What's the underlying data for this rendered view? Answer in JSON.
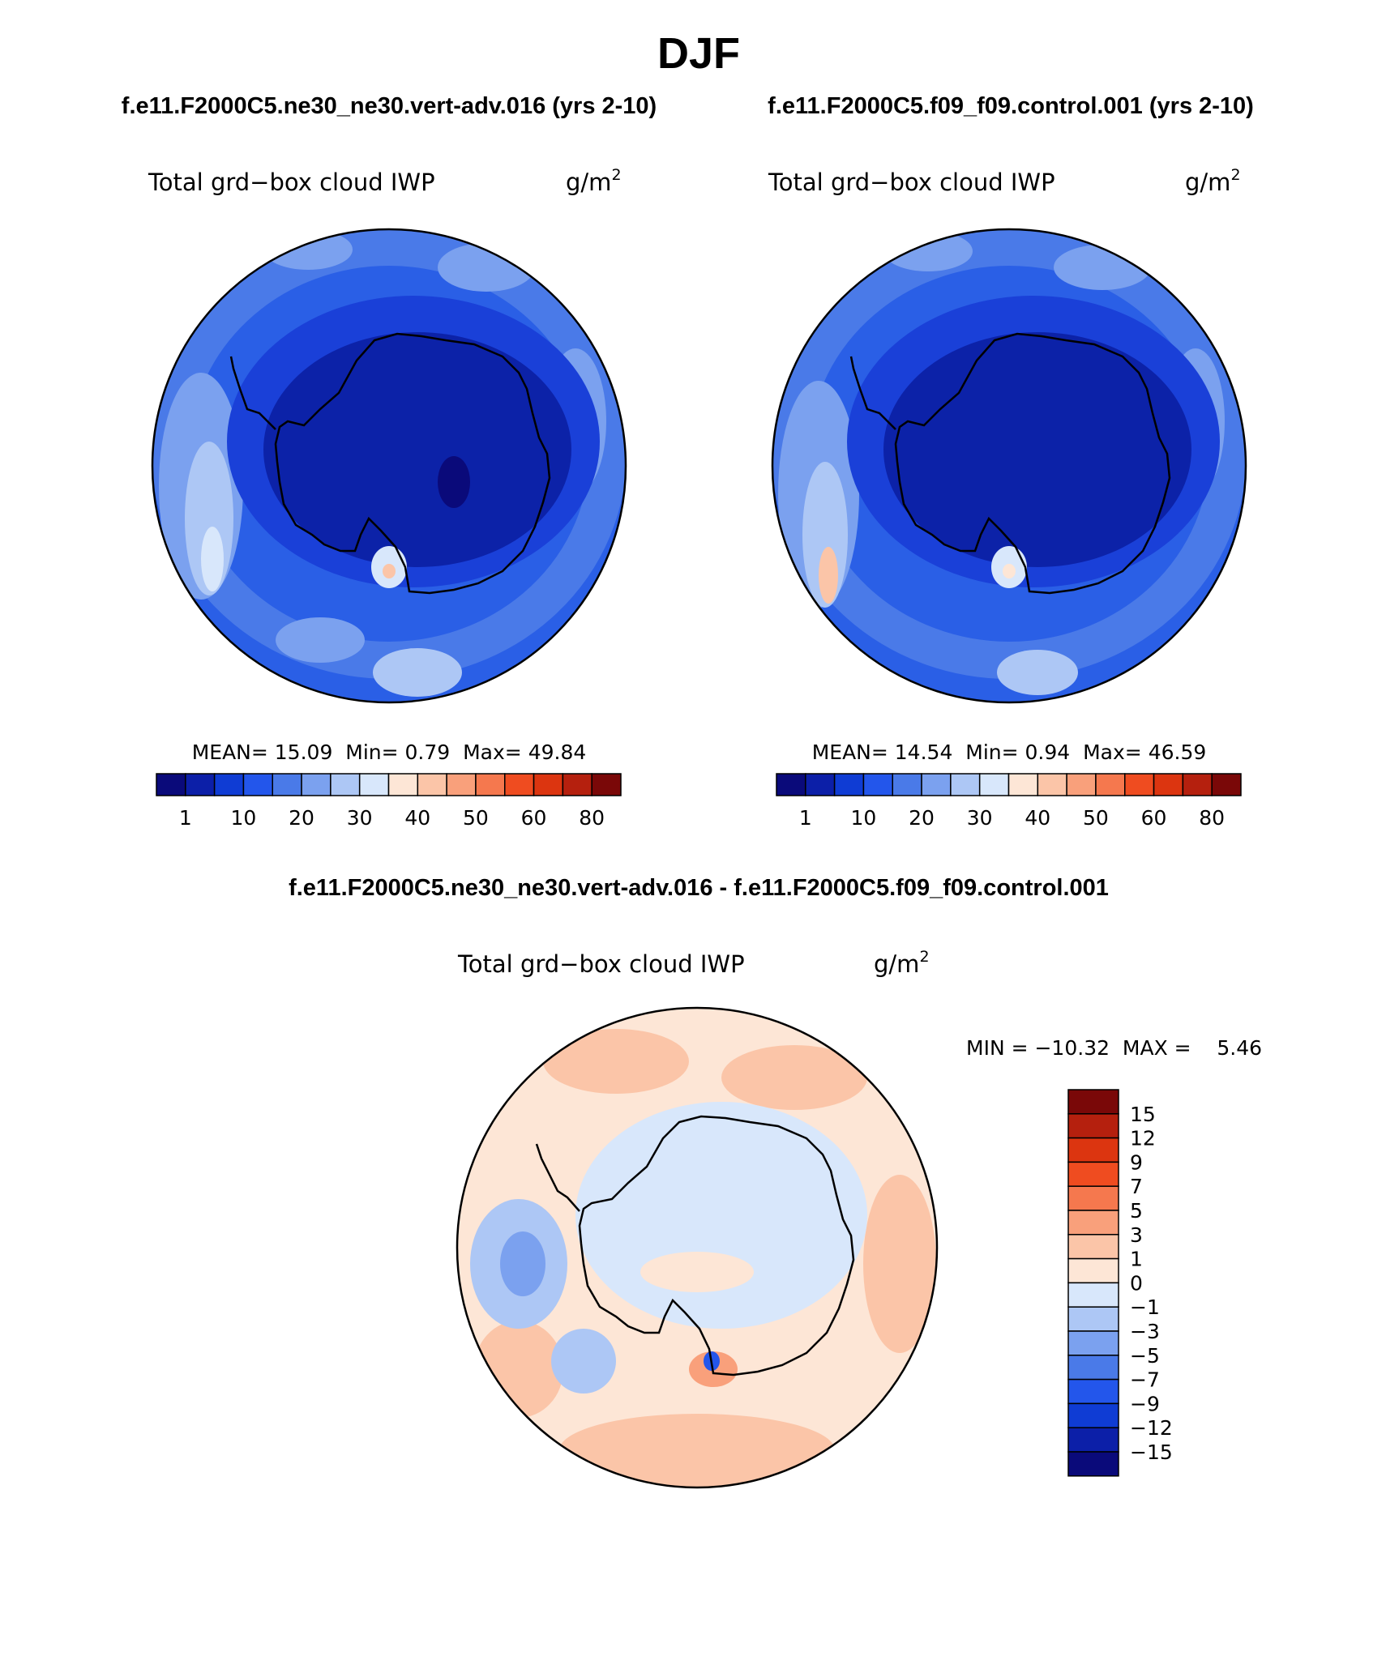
{
  "figure_title": "DJF",
  "chart_data": [
    {
      "type": "contour-map",
      "projection": "south-polar-stereographic",
      "case_title": "f.e11.F2000C5.ne30_ne30.vert-adv.016 (yrs 2-10)",
      "variable": "Total grd−box cloud IWP",
      "units": "g/m",
      "units_exp": "2",
      "stats": {
        "mean_label": "MEAN=",
        "mean": "15.09",
        "min_label": "Min=",
        "min": "0.79",
        "max_label": "Max=",
        "max": "49.84"
      },
      "colorbar_ticks": [
        "1",
        "10",
        "20",
        "30",
        "40",
        "50",
        "60",
        "80"
      ],
      "colors": [
        "#0a0a7a",
        "#0c1fa8",
        "#0f3cd4",
        "#2356eb",
        "#4a7ae8",
        "#7ba1ef",
        "#adc7f5",
        "#d8e7fb",
        "#fde6d6",
        "#fbc5a8",
        "#f9a07b",
        "#f5784e",
        "#ef4c20",
        "#dc3510",
        "#b5200e",
        "#7a0808"
      ]
    },
    {
      "type": "contour-map",
      "projection": "south-polar-stereographic",
      "case_title": "f.e11.F2000C5.f09_f09.control.001 (yrs 2-10)",
      "variable": "Total grd−box cloud IWP",
      "units": "g/m",
      "units_exp": "2",
      "stats": {
        "mean_label": "MEAN=",
        "mean": "14.54",
        "min_label": "Min=",
        "min": "0.94",
        "max_label": "Max=",
        "max": "46.59"
      },
      "colorbar_ticks": [
        "1",
        "10",
        "20",
        "30",
        "40",
        "50",
        "60",
        "80"
      ],
      "colors": [
        "#0a0a7a",
        "#0c1fa8",
        "#0f3cd4",
        "#2356eb",
        "#4a7ae8",
        "#7ba1ef",
        "#adc7f5",
        "#d8e7fb",
        "#fde6d6",
        "#fbc5a8",
        "#f9a07b",
        "#f5784e",
        "#ef4c20",
        "#dc3510",
        "#b5200e",
        "#7a0808"
      ]
    },
    {
      "type": "contour-map-difference",
      "projection": "south-polar-stereographic",
      "case_title": "f.e11.F2000C5.ne30_ne30.vert-adv.016 - f.e11.F2000C5.f09_f09.control.001",
      "variable": "Total grd−box cloud IWP",
      "units": "g/m",
      "units_exp": "2",
      "stats_text": "MIN = −10.32  MAX =    5.46",
      "colorbar_ticks": [
        "15",
        "12",
        "9",
        "7",
        "5",
        "3",
        "1",
        "0",
        "−1",
        "−3",
        "−5",
        "−7",
        "−9",
        "−12",
        "−15"
      ],
      "colors": [
        "#7a0808",
        "#b5200e",
        "#dc3510",
        "#ef4c20",
        "#f5784e",
        "#f9a07b",
        "#fbc5a8",
        "#fde6d6",
        "#d8e7fb",
        "#adc7f5",
        "#7ba1ef",
        "#4a7ae8",
        "#2356eb",
        "#0f3cd4",
        "#0c1fa8",
        "#0a0a7a"
      ]
    }
  ]
}
